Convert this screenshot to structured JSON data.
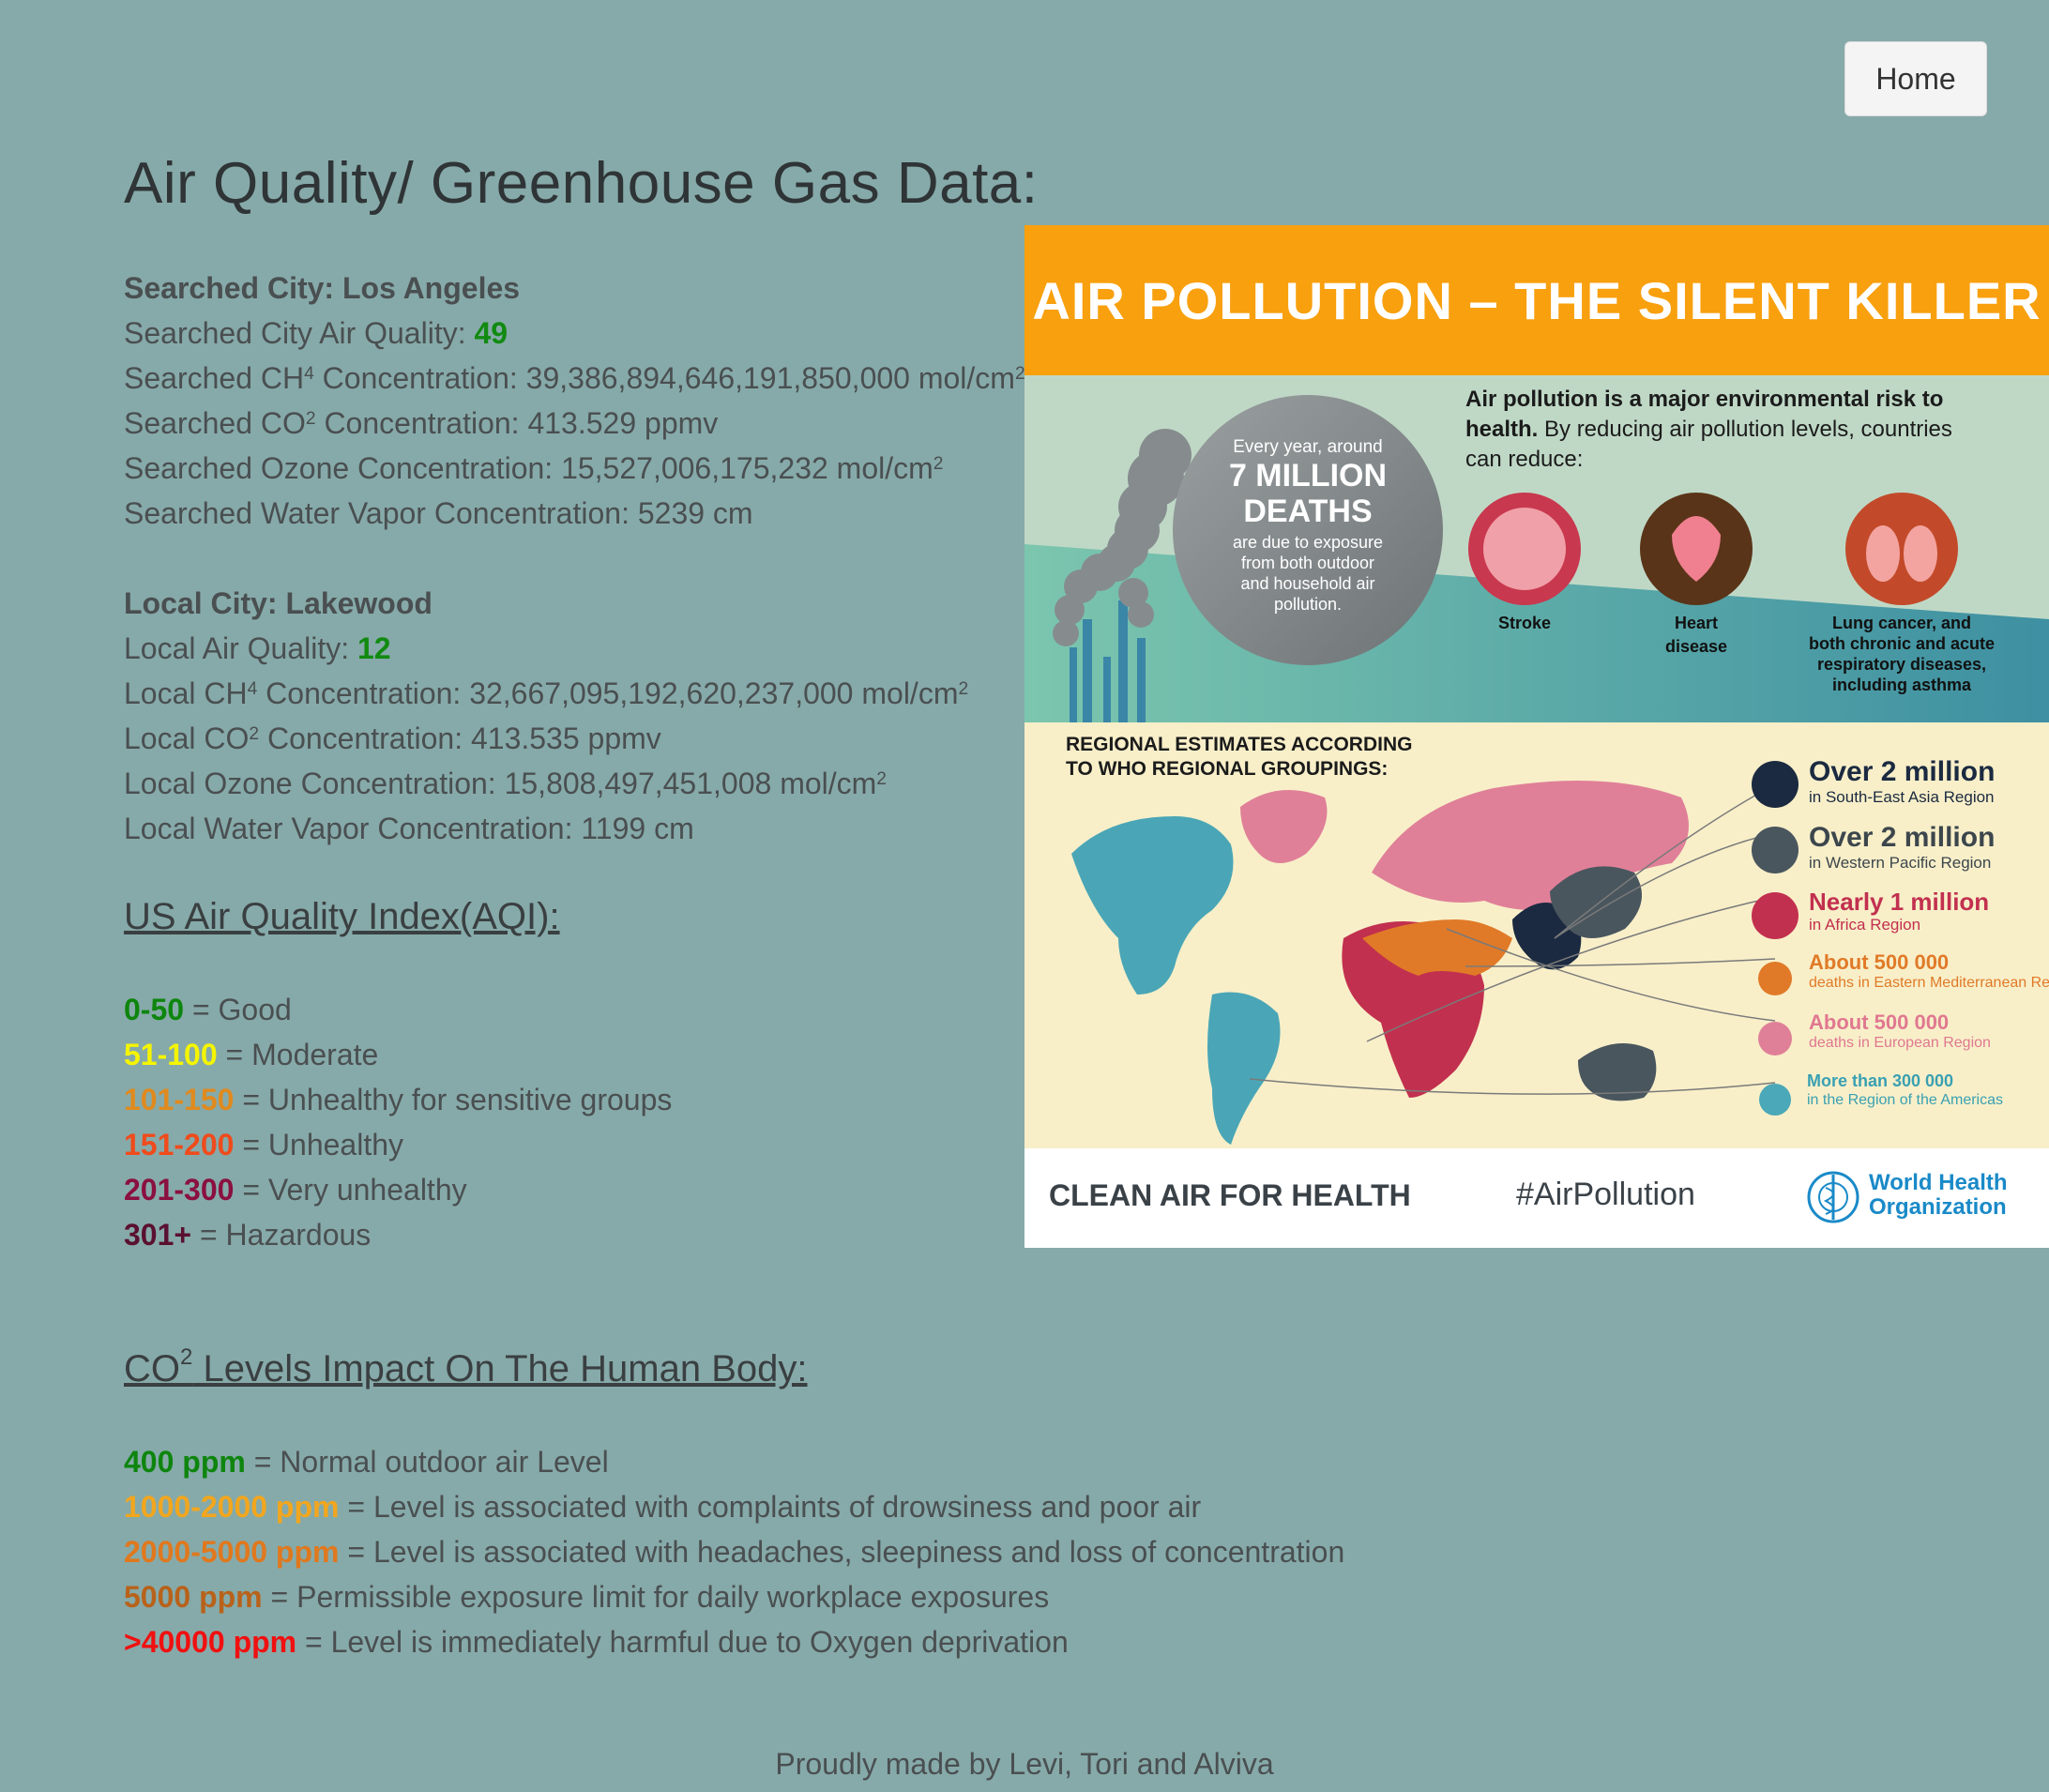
{
  "nav": {
    "home_label": "Home"
  },
  "page_title": "Air Quality/ Greenhouse Gas Data:",
  "searched": {
    "heading": "Searched City: Los Angeles",
    "aq_label": "Searched City Air Quality: ",
    "aq_value": "49",
    "ch4_pre": "Searched CH",
    "ch4_sup": "4",
    "ch4_post": " Concentration: 39,386,894,646,191,850,000 mol/cm",
    "ch4_unit_sup": "2",
    "co2_pre": "Searched CO",
    "co2_sup": "2",
    "co2_post": " Concentration: 413.529 ppmv",
    "ozone": "Searched Ozone Concentration: 15,527,006,175,232 mol/cm",
    "ozone_sup": "2",
    "water": "Searched Water Vapor Concentration: 5239 cm"
  },
  "local": {
    "heading": "Local City: Lakewood",
    "aq_label": "Local Air Quality: ",
    "aq_value": "12",
    "ch4_pre": "Local CH",
    "ch4_sup": "4",
    "ch4_post": " Concentration: 32,667,095,192,620,237,000 mol/cm",
    "ch4_unit_sup": "2",
    "co2_pre": "Local CO",
    "co2_sup": "2",
    "co2_post": " Concentration: 413.535 ppmv",
    "ozone": "Local Ozone Concentration: 15,808,497,451,008 mol/cm",
    "ozone_sup": "2",
    "water": "Local Water Vapor Concentration: 1199 cm"
  },
  "aqi": {
    "title": "US Air Quality Index(AQI):",
    "rows": [
      {
        "range": "0-50",
        "desc": " = Good",
        "color": "#0e850e"
      },
      {
        "range": "51-100",
        "desc": " = Moderate",
        "color": "#f5f500"
      },
      {
        "range": "101-150",
        "desc": " = Unhealthy for sensitive groups",
        "color": "#e08a1e"
      },
      {
        "range": "151-200",
        "desc": " = Unhealthy",
        "color": "#ef4b1c"
      },
      {
        "range": "201-300",
        "desc": " = Very unhealthy",
        "color": "#8a1040"
      },
      {
        "range": "301+",
        "desc": " = Hazardous",
        "color": "#5a1030"
      }
    ]
  },
  "co2": {
    "title_pre": "CO",
    "title_sup": "2",
    "title_post": " Levels Impact On The Human Body:",
    "rows": [
      {
        "level": "400 ppm",
        "desc": " = Normal outdoor air Level"
      },
      {
        "level": "1000-2000 ppm",
        "desc": " = Level is associated with complaints of drowsiness and poor air"
      },
      {
        "level": "2000-5000 ppm",
        "desc": " = Level is associated with headaches, sleepiness and loss of concentration"
      },
      {
        "level": "5000 ppm",
        "desc": " = Permissible exposure limit for daily workplace exposures"
      },
      {
        "level": ">40000 ppm",
        "desc": " = Level is immediately harmful due to Oxygen deprivation"
      }
    ]
  },
  "footer": "Proudly made by Levi, Tori and Alviva",
  "infographic": {
    "title": "AIR POLLUTION – THE SILENT KILLER",
    "every_year": "Every year, around",
    "deaths_big_1": "7 MILLION",
    "deaths_big_2": "DEATHS",
    "deaths_small_1": "are due to exposure",
    "deaths_small_2": "from both outdoor",
    "deaths_small_3": "and household air",
    "deaths_small_4": "pollution.",
    "risk_bold_1": "Air pollution is a major environmental risk to",
    "risk_bold_2": "health.",
    "risk_rest_1": " By reducing air pollution levels, countries",
    "risk_rest_2": "can reduce:",
    "stroke": "Stroke",
    "heart_1": "Heart",
    "heart_2": "disease",
    "lung_1": "Lung cancer, and",
    "lung_2": "both chronic and acute",
    "lung_3": "respiratory diseases,",
    "lung_4": "including asthma",
    "regional_1": "REGIONAL ESTIMATES ACCORDING",
    "regional_2": "TO WHO REGIONAL GROUPINGS:",
    "regions": [
      {
        "big": "Over 2 million",
        "small": "in South-East Asia Region",
        "color": "#1b2a40",
        "big_color": "#1b2a40",
        "small_color": "#1b2a40"
      },
      {
        "big": "Over 2 million",
        "small": "in Western Pacific Region",
        "color": "#4a565e",
        "big_color": "#3c464c",
        "small_color": "#3c464c"
      },
      {
        "big": "Nearly 1 million",
        "small": "in Africa Region",
        "color": "#c2304f",
        "big_color": "#c2304f",
        "small_color": "#c2304f"
      },
      {
        "big": "About 500 000",
        "small": "deaths in Eastern Mediterranean Region",
        "color": "#e07a28",
        "big_color": "#e07a28",
        "small_color": "#e07a28"
      },
      {
        "big": "About 500 000",
        "small": "deaths in European Region",
        "color": "#e08098",
        "big_color": "#e07890",
        "small_color": "#e07890"
      },
      {
        "big": "More than 300 000",
        "small": "in the Region of the Americas",
        "color": "#4aa8b8",
        "big_color": "#3aa0b2",
        "small_color": "#3aa0b2"
      }
    ],
    "clean_air": "CLEAN AIR FOR HEALTH",
    "hashtag": "#AirPollution",
    "who_1": "World Health",
    "who_2": "Organization"
  }
}
